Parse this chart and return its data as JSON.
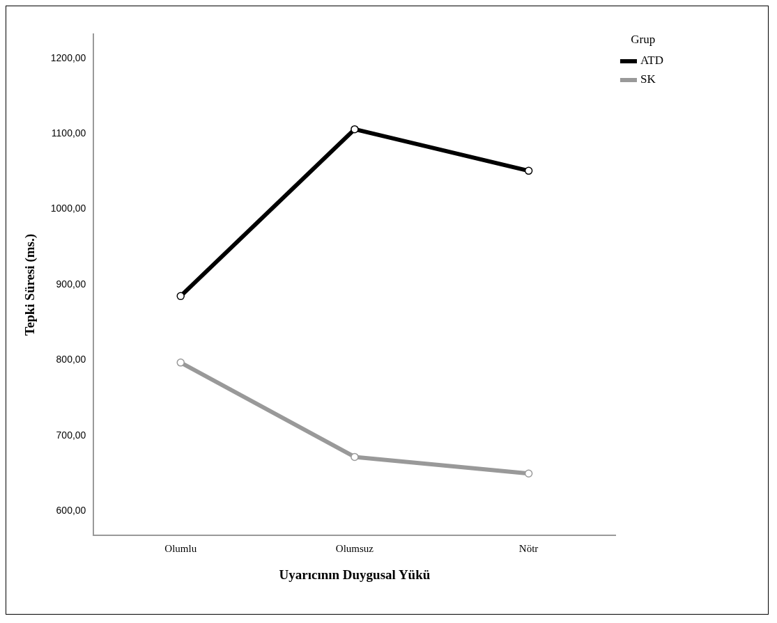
{
  "chart_data": {
    "type": "line",
    "xlabel": "Uyarıcının Duygusal Yükü",
    "ylabel": "Tepki Süresi (ms.)",
    "legend_title": "Grup",
    "categories": [
      "Olumlu",
      "Olumsuz",
      "Nötr"
    ],
    "series": [
      {
        "name": "ATD",
        "color": "#000000",
        "values": [
          885,
          1106,
          1051
        ]
      },
      {
        "name": "SK",
        "color": "#999999",
        "values": [
          797,
          672,
          650
        ]
      }
    ],
    "ylim": [
      568,
      1232
    ],
    "yticks": [
      {
        "value": 600,
        "label": "600,00"
      },
      {
        "value": 700,
        "label": "700,00"
      },
      {
        "value": 800,
        "label": "800,00"
      },
      {
        "value": 900,
        "label": "900,00"
      },
      {
        "value": 1000,
        "label": "1000,00"
      },
      {
        "value": 1100,
        "label": "1100,00"
      },
      {
        "value": 1200,
        "label": "1200,00"
      }
    ],
    "grid": false,
    "legend": "top right",
    "marker": "circle",
    "line_style": "solid"
  }
}
